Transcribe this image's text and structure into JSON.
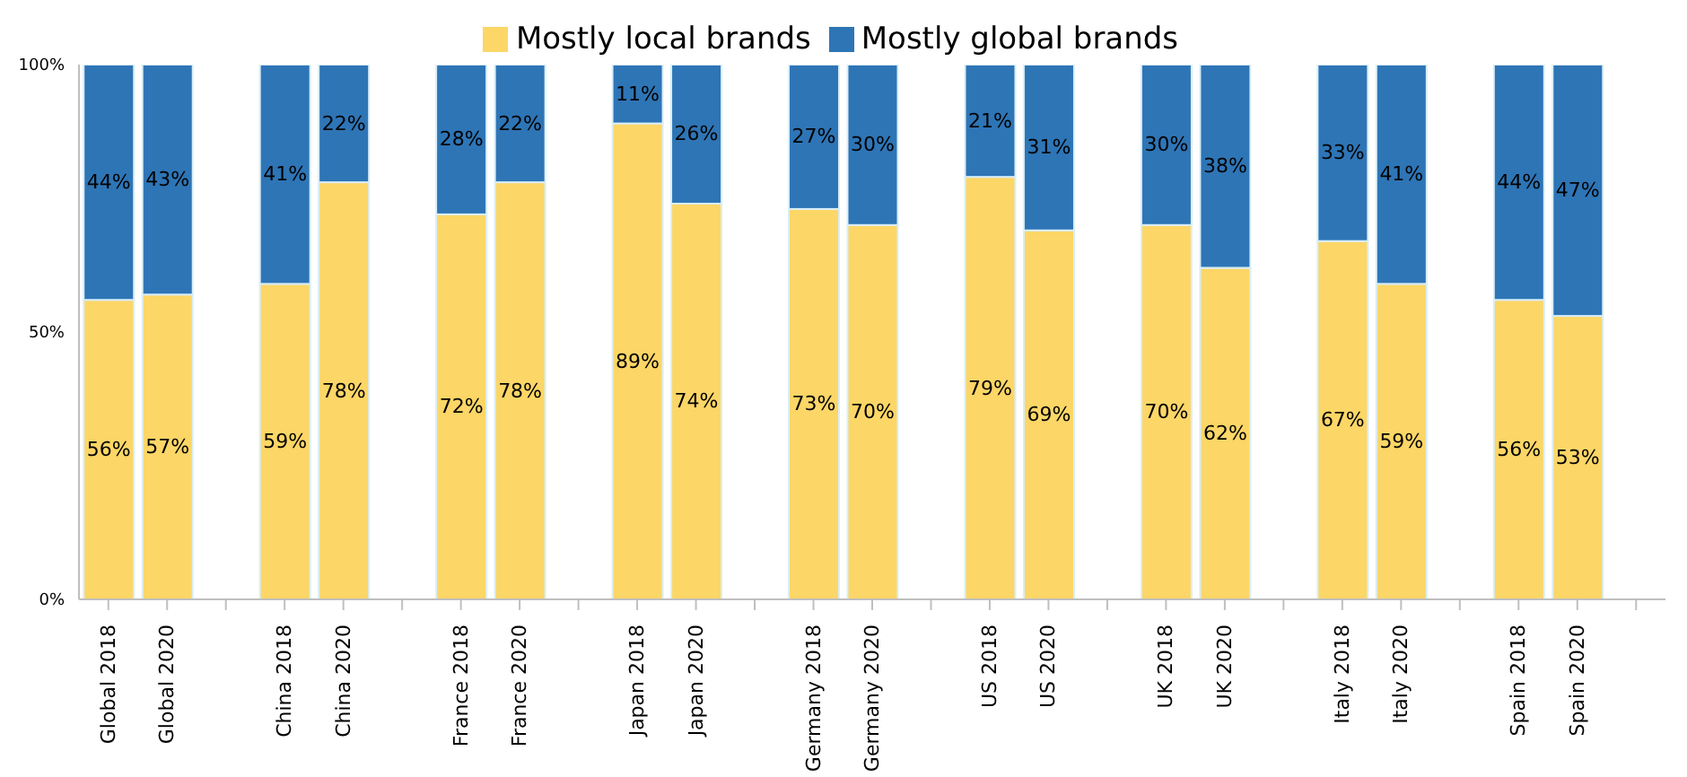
{
  "chart_data": {
    "type": "bar",
    "stacked": true,
    "categories": [
      "Global 2018",
      "Global 2020",
      null,
      "China 2018",
      "China 2020",
      null,
      "France 2018",
      "France 2020",
      null,
      "Japan 2018",
      "Japan 2020",
      null,
      "Germany 2018",
      "Germany 2020",
      null,
      "US 2018",
      "US 2020",
      null,
      "UK 2018",
      "UK 2020",
      null,
      "Italy 2018",
      "Italy 2020",
      null,
      "Spain 2018",
      "Spain 2020",
      null
    ],
    "series": [
      {
        "name": "Mostly local brands",
        "color": "#fcd666",
        "values": [
          56,
          57,
          null,
          59,
          78,
          null,
          72,
          78,
          null,
          89,
          74,
          null,
          73,
          70,
          null,
          79,
          69,
          null,
          70,
          62,
          null,
          67,
          59,
          null,
          56,
          53,
          null
        ],
        "value_labels": [
          "56%",
          "57%",
          null,
          "59%",
          "78%",
          null,
          "72%",
          "78%",
          null,
          "89%",
          "74%",
          null,
          "73%",
          "70%",
          null,
          "79%",
          "69%",
          null,
          "70%",
          "62%",
          null,
          "67%",
          "59%",
          null,
          "56%",
          "53%",
          null
        ]
      },
      {
        "name": "Mostly global brands",
        "color": "#2e75b6",
        "values": [
          44,
          43,
          null,
          41,
          22,
          null,
          28,
          22,
          null,
          11,
          26,
          null,
          27,
          30,
          null,
          21,
          31,
          null,
          30,
          38,
          null,
          33,
          41,
          null,
          44,
          47,
          null
        ],
        "value_labels": [
          "44%",
          "43%",
          null,
          "41%",
          "22%",
          null,
          "28%",
          "22%",
          null,
          "11%",
          "26%",
          null,
          "27%",
          "30%",
          null,
          "21%",
          "31%",
          null,
          "30%",
          "38%",
          null,
          "33%",
          "41%",
          null,
          "44%",
          "47%",
          null
        ]
      }
    ],
    "ylim": [
      0,
      100
    ],
    "yticks": [
      {
        "value": 0,
        "label": "0%"
      },
      {
        "value": 50,
        "label": "50%"
      },
      {
        "value": 100,
        "label": "100%"
      }
    ],
    "grid": false,
    "legend": "top"
  }
}
